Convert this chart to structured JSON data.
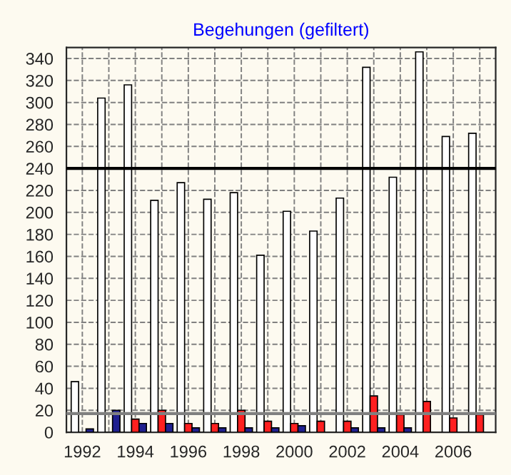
{
  "chart_data": {
    "type": "bar",
    "title": "Begehungen (gefiltert)",
    "categories": [
      "1992",
      null,
      "1994",
      null,
      "1996",
      null,
      "1998",
      null,
      "2000",
      null,
      "2002",
      null,
      "2004",
      null,
      "2006",
      null
    ],
    "series": [
      {
        "color": "#ffffff",
        "values": [
          46,
          304,
          316,
          211,
          227,
          212,
          218,
          161,
          201,
          183,
          213,
          332,
          232,
          346,
          269,
          272
        ]
      },
      {
        "color": "#ff2020",
        "values": [
          0,
          0,
          12,
          20,
          8,
          8,
          20,
          10,
          8,
          10,
          10,
          33,
          16,
          28,
          13,
          16
        ]
      },
      {
        "color": "#202090",
        "values": [
          3,
          20,
          8,
          8,
          4,
          4,
          4,
          4,
          6,
          0,
          4,
          4,
          4,
          0,
          0,
          0
        ]
      }
    ],
    "ylim": [
      0,
      350
    ],
    "yticks": [
      0,
      20,
      40,
      60,
      80,
      100,
      120,
      140,
      160,
      180,
      200,
      220,
      240,
      260,
      280,
      300,
      320,
      340
    ],
    "grid": true,
    "ref_lines": [
      {
        "axis": "y",
        "value": 240,
        "color": "#000000"
      },
      {
        "axis": "y",
        "value": 17,
        "color": "#808080"
      }
    ]
  }
}
